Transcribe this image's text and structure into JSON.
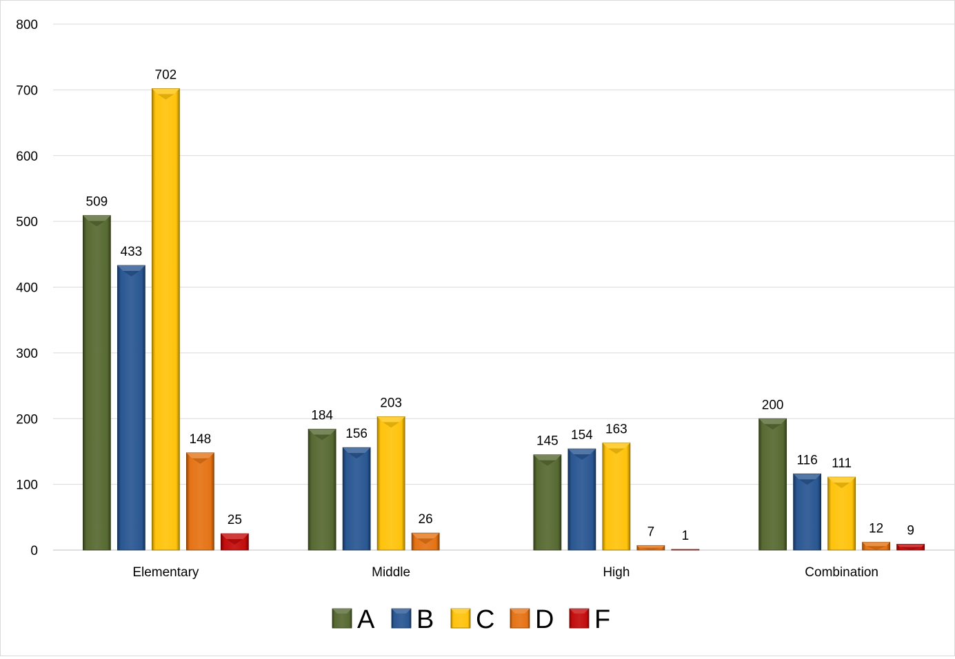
{
  "chart_data": {
    "type": "bar",
    "categories": [
      "Elementary",
      "Middle",
      "High",
      "Combination"
    ],
    "series": [
      {
        "name": "A",
        "color": "#4f6228",
        "values": [
          509,
          184,
          145,
          200
        ]
      },
      {
        "name": "B",
        "color": "#1f4e8c",
        "values": [
          433,
          156,
          154,
          116
        ]
      },
      {
        "name": "C",
        "color": "#ffc000",
        "values": [
          702,
          203,
          163,
          111
        ]
      },
      {
        "name": "D",
        "color": "#e46c0a",
        "values": [
          148,
          26,
          7,
          12
        ]
      },
      {
        "name": "F",
        "color": "#c00000",
        "values": [
          25,
          null,
          1,
          9
        ]
      }
    ],
    "ylim": [
      0,
      800
    ],
    "y_ticks": [
      0,
      100,
      200,
      300,
      400,
      500,
      600,
      700,
      800
    ],
    "grid": true,
    "legend_position": "bottom",
    "data_labels": true
  }
}
